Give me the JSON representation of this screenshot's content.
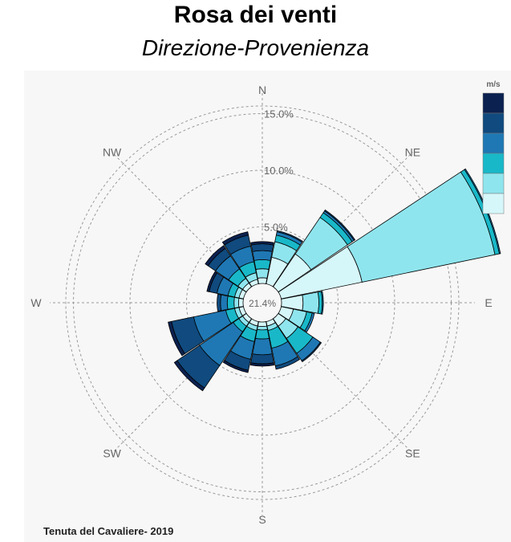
{
  "title": "Rosa dei venti",
  "subtitle": "Direzione-Provenienza",
  "footer": "Tenuta del Cavaliere- 2019",
  "chart_data": {
    "type": "wind-rose",
    "directions": [
      "N",
      "NNE",
      "NE",
      "ENE",
      "E",
      "ESE",
      "SE",
      "SSE",
      "S",
      "SSW",
      "SW",
      "WSW",
      "W",
      "WNW",
      "NW",
      "NNW"
    ],
    "direction_labels": [
      "N",
      "NE",
      "E",
      "SE",
      "S",
      "SW",
      "W",
      "NW"
    ],
    "calm_label": "21.4%",
    "ring_labels": [
      "5.0%",
      "10.0%",
      "15.0%"
    ],
    "ring_values": [
      5,
      10,
      15
    ],
    "legend_title": "m/s",
    "legend_colors": [
      "#0b2150",
      "#104a7e",
      "#1f78b4",
      "#19b8c8",
      "#8fe5ee",
      "#d6f7fa"
    ],
    "bin_colors": [
      "#d6f7fa",
      "#8fe5ee",
      "#19b8c8",
      "#1f78b4",
      "#104a7e",
      "#0b2150"
    ],
    "series": [
      {
        "direction": "N",
        "values": [
          0.5,
          0.8,
          0.8,
          0.8,
          0.6,
          0.2
        ]
      },
      {
        "direction": "NNE",
        "values": [
          2.4,
          1.4,
          0.6,
          0.3,
          0.1,
          0.0
        ]
      },
      {
        "direction": "NE",
        "values": [
          3.5,
          3.9,
          0.5,
          0.2,
          0.1,
          0.0
        ]
      },
      {
        "direction": "ENE",
        "values": [
          7.3,
          12.0,
          0.4,
          0.1,
          0.0,
          0.0
        ]
      },
      {
        "direction": "E",
        "values": [
          1.9,
          1.4,
          0.3,
          0.1,
          0.0,
          0.0
        ]
      },
      {
        "direction": "ESE",
        "values": [
          1.1,
          1.2,
          0.5,
          0.2,
          0.0,
          0.0
        ]
      },
      {
        "direction": "SE",
        "values": [
          0.8,
          1.3,
          1.6,
          0.8,
          0.1,
          0.0
        ]
      },
      {
        "direction": "SSE",
        "values": [
          0.4,
          0.4,
          1.6,
          1.6,
          0.3,
          0.0
        ]
      },
      {
        "direction": "S",
        "values": [
          0.4,
          0.3,
          0.8,
          1.4,
          0.8,
          0.2
        ]
      },
      {
        "direction": "SSW",
        "values": [
          0.4,
          0.4,
          1.0,
          1.6,
          1.0,
          0.2
        ]
      },
      {
        "direction": "SW",
        "values": [
          0.4,
          0.4,
          0.6,
          3.6,
          2.4,
          0.3
        ]
      },
      {
        "direction": "WSW",
        "values": [
          0.4,
          0.4,
          0.8,
          2.9,
          2.0,
          0.3
        ]
      },
      {
        "direction": "W",
        "values": [
          0.4,
          0.4,
          0.6,
          0.6,
          0.3,
          0.0
        ]
      },
      {
        "direction": "WNW",
        "values": [
          0.4,
          0.4,
          0.6,
          1.0,
          0.7,
          0.2
        ]
      },
      {
        "direction": "NW",
        "values": [
          0.4,
          0.5,
          1.0,
          1.4,
          0.8,
          0.3
        ]
      },
      {
        "direction": "NNW",
        "values": [
          0.4,
          0.6,
          1.0,
          1.4,
          1.0,
          0.3
        ]
      }
    ]
  }
}
